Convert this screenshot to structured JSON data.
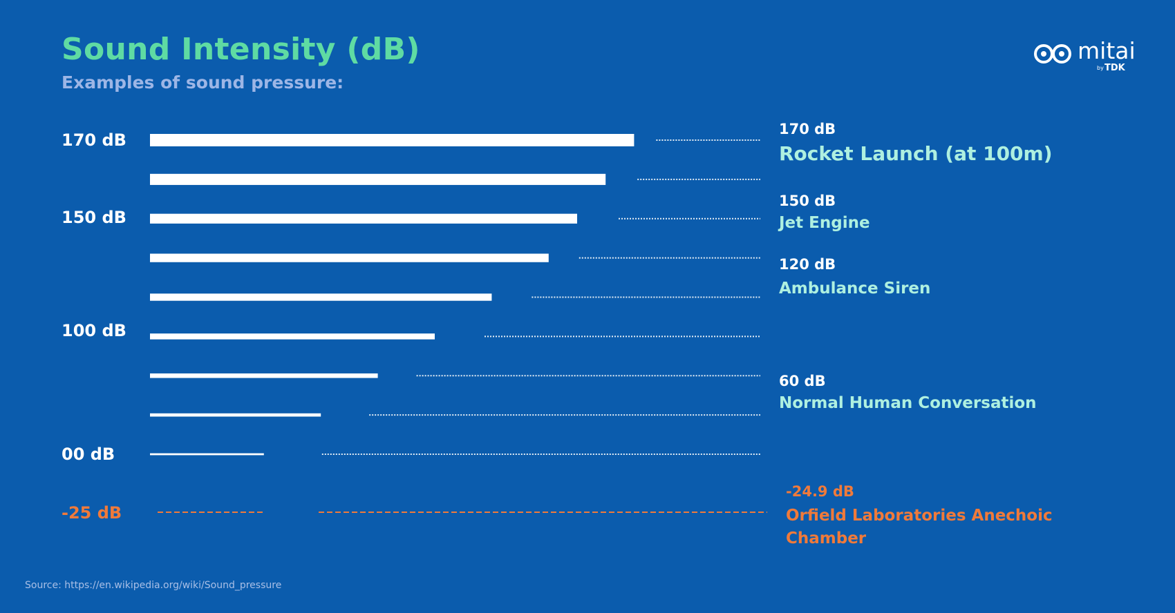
{
  "title": "Sound Intensity (dB)",
  "subtitle": "Examples of sound pressure:",
  "logo": {
    "brand": "mitai",
    "by": "by",
    "company": "TDK"
  },
  "source": "Source: https://en.wikipedia.org/wiki/Sound_pressure",
  "colors": {
    "background": "#0b5cad",
    "title": "#5fdba3",
    "subtitle": "#9db6e6",
    "bar": "#ffffff",
    "label": "#aef0e0",
    "negative": "#f07a3a"
  },
  "chart_data": {
    "type": "bar",
    "orientation": "horizontal",
    "title": "Sound Intensity (dB)",
    "subtitle": "Examples of sound pressure:",
    "axis_labels": [
      {
        "label": "170 dB",
        "value": 170
      },
      {
        "label": "150 dB",
        "value": 150
      },
      {
        "label": "100 dB",
        "value": 100
      },
      {
        "label": "00 dB",
        "value": 0
      },
      {
        "label": "-25 dB",
        "value": -25,
        "negative": true
      }
    ],
    "bars": [
      {
        "value": 170
      },
      {
        "value": 160
      },
      {
        "value": 150
      },
      {
        "value": 140
      },
      {
        "value": 120
      },
      {
        "value": 100
      },
      {
        "value": 80
      },
      {
        "value": 60
      },
      {
        "value": 40
      }
    ],
    "reference_line": {
      "value": -25
    },
    "annotations": [
      {
        "db": "170 dB",
        "name": "Rocket Launch (at 100m)"
      },
      {
        "db": "150 dB",
        "name": "Jet Engine"
      },
      {
        "db": "120 dB",
        "name": "Ambulance Siren"
      },
      {
        "db": "60 dB",
        "name": "Normal Human Conversation"
      },
      {
        "db": "-24.9 dB",
        "name_lines": [
          "Orfield Laboratories Anechoic",
          "Chamber"
        ],
        "negative": true
      }
    ]
  }
}
